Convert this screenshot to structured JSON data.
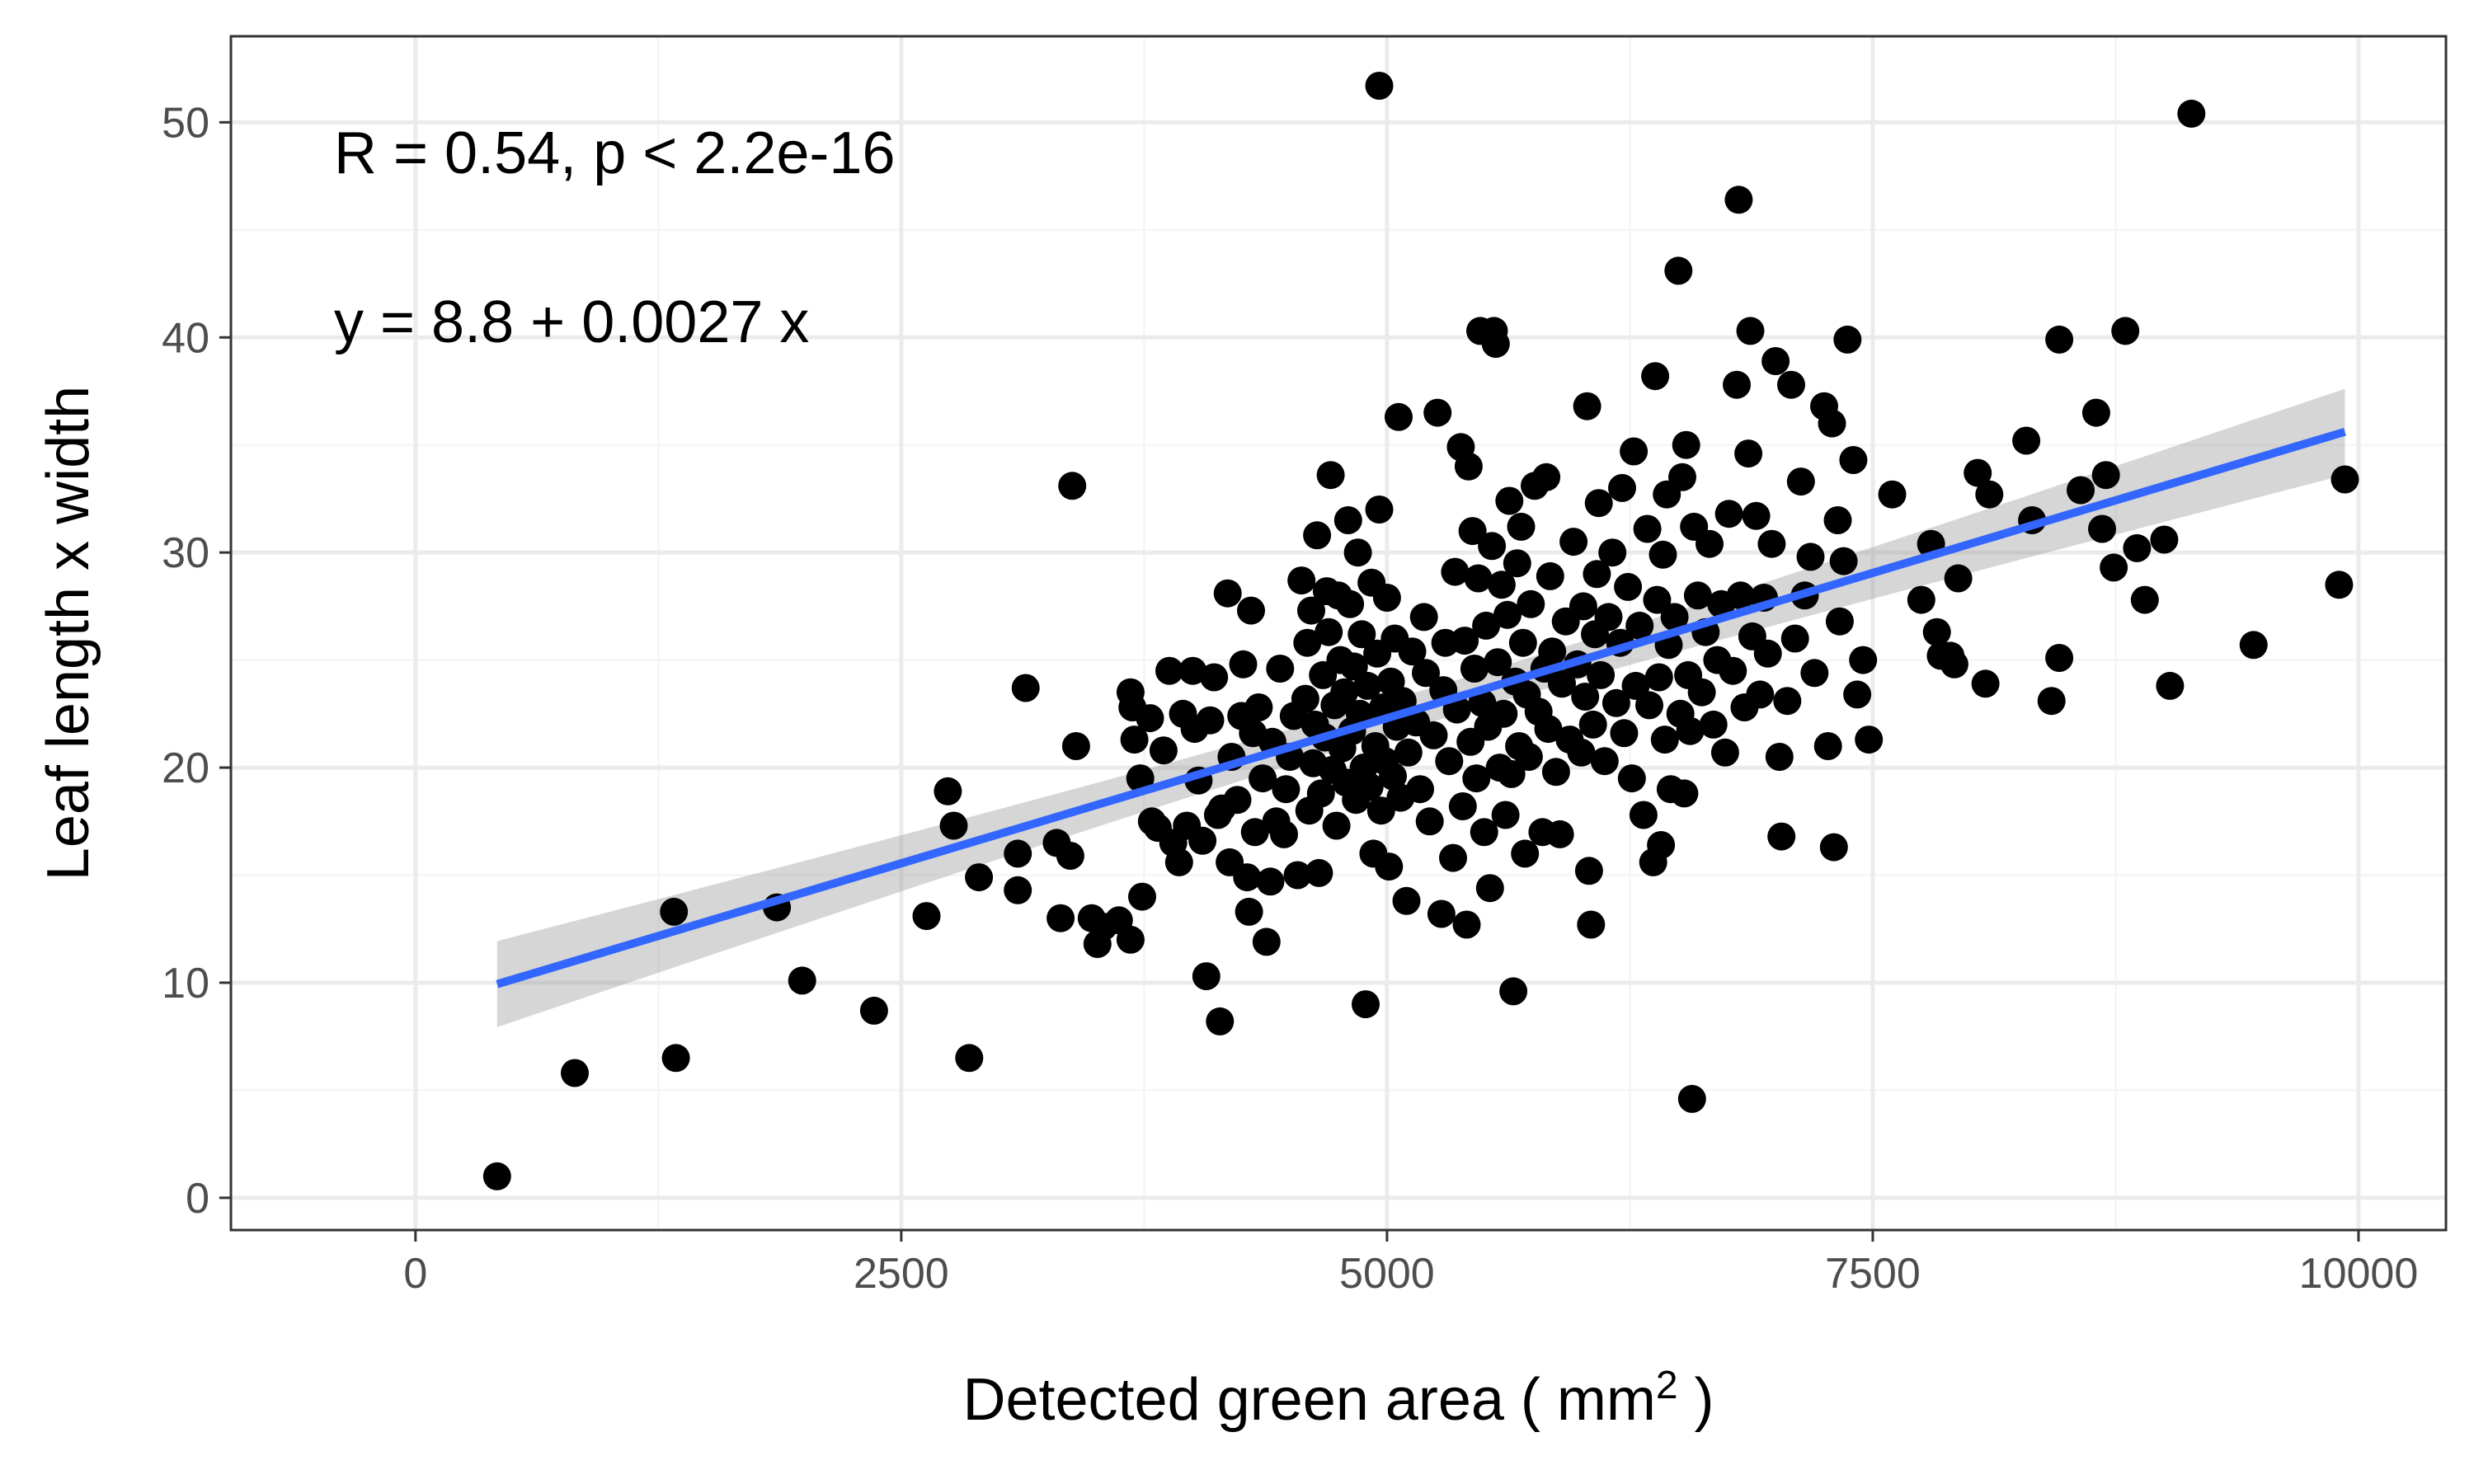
{
  "chart_data": {
    "type": "scatter",
    "xlabel": "Detected green area ( mm",
    "xlabel_superscript": "2",
    "xlabel_suffix": " )",
    "ylabel": "Leaf length x width",
    "xlim": [
      -950,
      10450
    ],
    "ylim": [
      -1.5,
      54
    ],
    "x_ticks": [
      0,
      2500,
      5000,
      7500,
      10000
    ],
    "y_ticks": [
      0,
      10,
      20,
      30,
      40,
      50
    ],
    "grid": true,
    "annotations": {
      "r_text": "R = 0.54, p < 2.2e-16",
      "eq_text": "y = 8.8 + 0.0027 x"
    },
    "regression": {
      "intercept": 8.8,
      "slope": 0.0027,
      "x_range": [
        420,
        9930
      ],
      "ci_half_width": [
        2.0,
        0.8,
        2.0
      ]
    },
    "colors": {
      "points": "#000000",
      "line": "#3366ff",
      "ribbon": "#999999",
      "grid_major": "#ebebeb",
      "grid_minor": "#f5f5f5",
      "panel_border": "#333333"
    },
    "points": [
      [
        420,
        1.0
      ],
      [
        820,
        5.8
      ],
      [
        1330,
        13.3
      ],
      [
        1340,
        6.5
      ],
      [
        1860,
        13.5
      ],
      [
        1990,
        10.1
      ],
      [
        2360,
        8.7
      ],
      [
        2630,
        13.1
      ],
      [
        2740,
        18.9
      ],
      [
        2770,
        17.3
      ],
      [
        2850,
        6.5
      ],
      [
        2900,
        14.9
      ],
      [
        3100,
        16.0
      ],
      [
        3100,
        14.3
      ],
      [
        3140,
        23.7
      ],
      [
        3300,
        16.5
      ],
      [
        3320,
        13.0
      ],
      [
        3370,
        15.9
      ],
      [
        3380,
        33.1
      ],
      [
        3400,
        21.0
      ],
      [
        3480,
        13.0
      ],
      [
        3510,
        11.8
      ],
      [
        3540,
        12.6
      ],
      [
        3620,
        12.9
      ],
      [
        3680,
        12.0
      ],
      [
        3680,
        23.5
      ],
      [
        3690,
        22.8
      ],
      [
        3700,
        21.3
      ],
      [
        3730,
        19.5
      ],
      [
        3740,
        14.0
      ],
      [
        3780,
        22.3
      ],
      [
        3790,
        17.5
      ],
      [
        3820,
        17.2
      ],
      [
        3850,
        20.8
      ],
      [
        3880,
        24.5
      ],
      [
        3900,
        16.5
      ],
      [
        3930,
        15.6
      ],
      [
        3950,
        22.5
      ],
      [
        3970,
        17.3
      ],
      [
        4000,
        24.5
      ],
      [
        4010,
        21.8
      ],
      [
        4030,
        19.4
      ],
      [
        4050,
        16.6
      ],
      [
        4070,
        10.3
      ],
      [
        4090,
        22.2
      ],
      [
        4110,
        24.2
      ],
      [
        4130,
        17.8
      ],
      [
        4140,
        8.2
      ],
      [
        4150,
        18.1
      ],
      [
        4180,
        28.1
      ],
      [
        4190,
        15.6
      ],
      [
        4200,
        20.5
      ],
      [
        4230,
        18.5
      ],
      [
        4250,
        22.4
      ],
      [
        4260,
        24.8
      ],
      [
        4280,
        14.9
      ],
      [
        4290,
        13.3
      ],
      [
        4300,
        27.3
      ],
      [
        4310,
        21.6
      ],
      [
        4320,
        17.0
      ],
      [
        4340,
        22.8
      ],
      [
        4360,
        19.5
      ],
      [
        4380,
        11.9
      ],
      [
        4400,
        14.7
      ],
      [
        4410,
        21.2
      ],
      [
        4430,
        17.5
      ],
      [
        4450,
        24.6
      ],
      [
        4470,
        16.9
      ],
      [
        4480,
        19.0
      ],
      [
        4500,
        20.5
      ],
      [
        4520,
        22.4
      ],
      [
        4540,
        15.0
      ],
      [
        4560,
        28.7
      ],
      [
        4580,
        23.2
      ],
      [
        4590,
        25.8
      ],
      [
        4600,
        18.0
      ],
      [
        4610,
        27.3
      ],
      [
        4620,
        20.2
      ],
      [
        4630,
        22.0
      ],
      [
        4640,
        30.8
      ],
      [
        4650,
        15.1
      ],
      [
        4660,
        18.8
      ],
      [
        4670,
        24.3
      ],
      [
        4680,
        21.4
      ],
      [
        4690,
        28.2
      ],
      [
        4700,
        26.3
      ],
      [
        4710,
        33.6
      ],
      [
        4720,
        19.9
      ],
      [
        4730,
        22.9
      ],
      [
        4740,
        17.3
      ],
      [
        4750,
        28.0
      ],
      [
        4760,
        25.0
      ],
      [
        4770,
        20.9
      ],
      [
        4780,
        23.5
      ],
      [
        4790,
        19.3
      ],
      [
        4800,
        31.5
      ],
      [
        4810,
        27.6
      ],
      [
        4820,
        21.7
      ],
      [
        4830,
        24.7
      ],
      [
        4840,
        18.5
      ],
      [
        4850,
        30.0
      ],
      [
        4860,
        22.5
      ],
      [
        4870,
        26.2
      ],
      [
        4880,
        20.0
      ],
      [
        4890,
        9.0
      ],
      [
        4900,
        23.8
      ],
      [
        4910,
        19.1
      ],
      [
        4920,
        28.6
      ],
      [
        4930,
        16.0
      ],
      [
        4940,
        21.0
      ],
      [
        4950,
        25.3
      ],
      [
        4960,
        32.0
      ],
      [
        4960,
        51.7
      ],
      [
        4970,
        18.0
      ],
      [
        4980,
        22.8
      ],
      [
        4990,
        20.3
      ],
      [
        5000,
        27.9
      ],
      [
        5010,
        15.4
      ],
      [
        5020,
        24.0
      ],
      [
        5030,
        19.6
      ],
      [
        5040,
        26.0
      ],
      [
        5050,
        21.9
      ],
      [
        5060,
        36.3
      ],
      [
        5070,
        18.6
      ],
      [
        5080,
        23.1
      ],
      [
        5100,
        13.8
      ],
      [
        5110,
        20.7
      ],
      [
        5130,
        25.4
      ],
      [
        5150,
        22.1
      ],
      [
        5170,
        19.0
      ],
      [
        5190,
        27.0
      ],
      [
        5200,
        24.4
      ],
      [
        5220,
        17.5
      ],
      [
        5240,
        21.5
      ],
      [
        5260,
        36.5
      ],
      [
        5280,
        13.2
      ],
      [
        5290,
        23.6
      ],
      [
        5300,
        25.8
      ],
      [
        5320,
        20.3
      ],
      [
        5340,
        15.8
      ],
      [
        5350,
        29.1
      ],
      [
        5360,
        22.7
      ],
      [
        5380,
        34.9
      ],
      [
        5390,
        18.2
      ],
      [
        5400,
        25.9
      ],
      [
        5410,
        12.7
      ],
      [
        5420,
        34.0
      ],
      [
        5430,
        21.2
      ],
      [
        5440,
        31.0
      ],
      [
        5450,
        24.6
      ],
      [
        5460,
        19.5
      ],
      [
        5470,
        28.8
      ],
      [
        5480,
        40.3
      ],
      [
        5490,
        23.0
      ],
      [
        5500,
        17.0
      ],
      [
        5510,
        26.6
      ],
      [
        5520,
        21.9
      ],
      [
        5530,
        14.4
      ],
      [
        5540,
        30.3
      ],
      [
        5550,
        40.3
      ],
      [
        5560,
        39.7
      ],
      [
        5570,
        24.9
      ],
      [
        5580,
        20.0
      ],
      [
        5590,
        28.5
      ],
      [
        5600,
        22.5
      ],
      [
        5610,
        17.8
      ],
      [
        5620,
        27.1
      ],
      [
        5630,
        32.4
      ],
      [
        5640,
        19.7
      ],
      [
        5650,
        9.6
      ],
      [
        5660,
        24.0
      ],
      [
        5670,
        29.5
      ],
      [
        5680,
        21.0
      ],
      [
        5690,
        31.2
      ],
      [
        5700,
        25.8
      ],
      [
        5710,
        16.0
      ],
      [
        5720,
        23.4
      ],
      [
        5730,
        20.5
      ],
      [
        5740,
        27.6
      ],
      [
        5760,
        33.1
      ],
      [
        5780,
        22.6
      ],
      [
        5800,
        17.0
      ],
      [
        5810,
        24.6
      ],
      [
        5820,
        33.5
      ],
      [
        5830,
        21.8
      ],
      [
        5840,
        28.9
      ],
      [
        5850,
        25.4
      ],
      [
        5870,
        19.8
      ],
      [
        5890,
        16.9
      ],
      [
        5900,
        23.9
      ],
      [
        5920,
        26.8
      ],
      [
        5940,
        21.3
      ],
      [
        5960,
        30.5
      ],
      [
        5980,
        24.8
      ],
      [
        6000,
        20.7
      ],
      [
        6010,
        27.5
      ],
      [
        6020,
        23.3
      ],
      [
        6030,
        36.8
      ],
      [
        6040,
        15.2
      ],
      [
        6050,
        12.7
      ],
      [
        6060,
        22.0
      ],
      [
        6070,
        26.2
      ],
      [
        6080,
        29.0
      ],
      [
        6090,
        32.3
      ],
      [
        6100,
        24.3
      ],
      [
        6120,
        20.3
      ],
      [
        6140,
        27.0
      ],
      [
        6160,
        30.0
      ],
      [
        6180,
        23.0
      ],
      [
        6200,
        25.8
      ],
      [
        6210,
        33.0
      ],
      [
        6220,
        21.6
      ],
      [
        6240,
        28.4
      ],
      [
        6260,
        19.5
      ],
      [
        6270,
        34.7
      ],
      [
        6280,
        23.8
      ],
      [
        6300,
        26.6
      ],
      [
        6320,
        17.8
      ],
      [
        6340,
        31.1
      ],
      [
        6350,
        22.9
      ],
      [
        6370,
        15.6
      ],
      [
        6380,
        38.2
      ],
      [
        6390,
        27.8
      ],
      [
        6400,
        24.2
      ],
      [
        6410,
        16.4
      ],
      [
        6420,
        29.9
      ],
      [
        6430,
        21.3
      ],
      [
        6440,
        32.7
      ],
      [
        6450,
        25.7
      ],
      [
        6460,
        19.0
      ],
      [
        6480,
        27.0
      ],
      [
        6500,
        43.1
      ],
      [
        6510,
        22.5
      ],
      [
        6520,
        33.5
      ],
      [
        6530,
        18.8
      ],
      [
        6540,
        35.0
      ],
      [
        6550,
        24.3
      ],
      [
        6560,
        21.7
      ],
      [
        6570,
        4.6
      ],
      [
        6580,
        31.2
      ],
      [
        6600,
        28.0
      ],
      [
        6620,
        23.5
      ],
      [
        6640,
        26.3
      ],
      [
        6660,
        30.4
      ],
      [
        6680,
        22.0
      ],
      [
        6700,
        25.0
      ],
      [
        6720,
        27.6
      ],
      [
        6740,
        20.7
      ],
      [
        6760,
        31.8
      ],
      [
        6780,
        24.5
      ],
      [
        6800,
        37.8
      ],
      [
        6810,
        46.4
      ],
      [
        6820,
        28.0
      ],
      [
        6840,
        22.8
      ],
      [
        6860,
        34.6
      ],
      [
        6870,
        40.3
      ],
      [
        6880,
        26.1
      ],
      [
        6900,
        31.7
      ],
      [
        6920,
        23.4
      ],
      [
        6940,
        27.9
      ],
      [
        6960,
        25.3
      ],
      [
        6980,
        30.4
      ],
      [
        7000,
        38.9
      ],
      [
        7020,
        20.5
      ],
      [
        7030,
        16.8
      ],
      [
        7060,
        23.1
      ],
      [
        7080,
        37.8
      ],
      [
        7100,
        26.0
      ],
      [
        7130,
        33.3
      ],
      [
        7150,
        28.0
      ],
      [
        7180,
        29.8
      ],
      [
        7200,
        24.4
      ],
      [
        7250,
        36.8
      ],
      [
        7270,
        21.0
      ],
      [
        7290,
        36.0
      ],
      [
        7300,
        16.3
      ],
      [
        7320,
        31.5
      ],
      [
        7330,
        26.8
      ],
      [
        7350,
        29.6
      ],
      [
        7370,
        39.9
      ],
      [
        7400,
        34.3
      ],
      [
        7420,
        23.4
      ],
      [
        7450,
        25.0
      ],
      [
        7480,
        21.3
      ],
      [
        7600,
        32.7
      ],
      [
        7750,
        27.8
      ],
      [
        7800,
        30.4
      ],
      [
        7830,
        26.3
      ],
      [
        7850,
        25.2
      ],
      [
        7900,
        25.2
      ],
      [
        7920,
        24.8
      ],
      [
        7940,
        28.8
      ],
      [
        8040,
        33.7
      ],
      [
        8080,
        23.9
      ],
      [
        8100,
        32.7
      ],
      [
        8290,
        35.2
      ],
      [
        8320,
        31.5
      ],
      [
        8420,
        23.1
      ],
      [
        8460,
        25.1
      ],
      [
        8460,
        39.9
      ],
      [
        8570,
        32.9
      ],
      [
        8650,
        36.5
      ],
      [
        8680,
        31.1
      ],
      [
        8700,
        33.6
      ],
      [
        8740,
        29.3
      ],
      [
        8800,
        40.3
      ],
      [
        8860,
        30.2
      ],
      [
        8900,
        27.8
      ],
      [
        9000,
        30.6
      ],
      [
        9030,
        23.8
      ],
      [
        9140,
        50.4
      ],
      [
        9460,
        25.7
      ],
      [
        9900,
        28.5
      ],
      [
        9930,
        33.4
      ]
    ]
  }
}
